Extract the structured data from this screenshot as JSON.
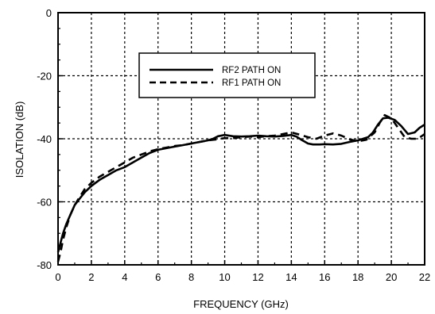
{
  "chart_data": {
    "type": "line",
    "title": "",
    "xlabel": "FREQUENCY (GHz)",
    "ylabel": "ISOLATION (dB)",
    "xlim": [
      0,
      22
    ],
    "ylim": [
      -80,
      0
    ],
    "xticks": [
      0,
      2,
      4,
      6,
      8,
      10,
      12,
      14,
      16,
      18,
      20,
      22
    ],
    "yticks": [
      0,
      -20,
      -40,
      -60,
      -80
    ],
    "grid": true,
    "legend_position": "top-center",
    "series": [
      {
        "name": "RF2 PATH ON",
        "style": "solid",
        "x": [
          0,
          0.15,
          0.3,
          0.5,
          0.75,
          1,
          1.3,
          1.6,
          2,
          2.5,
          3,
          3.5,
          4,
          4.5,
          5,
          5.5,
          6,
          6.5,
          7,
          7.5,
          8,
          8.5,
          9,
          9.3,
          9.6,
          10,
          10.5,
          11,
          11.5,
          12,
          12.5,
          13,
          13.5,
          14,
          14.3,
          14.6,
          15,
          15.3,
          15.7,
          16,
          16.5,
          17,
          17.5,
          18,
          18.3,
          18.6,
          18.9,
          19.2,
          19.5,
          19.8,
          20.2,
          20.6,
          21,
          21.4,
          21.7,
          22
        ],
        "values": [
          -76,
          -73,
          -70,
          -67,
          -64,
          -61,
          -59,
          -57,
          -55,
          -53,
          -51.5,
          -50,
          -49,
          -47.5,
          -46,
          -44.5,
          -43.5,
          -43,
          -42.5,
          -42,
          -41.5,
          -41,
          -40.5,
          -40,
          -39.2,
          -38.8,
          -39.2,
          -39.3,
          -39.2,
          -39,
          -39.2,
          -39.3,
          -39.1,
          -38.8,
          -39.3,
          -40.3,
          -41.5,
          -41.8,
          -41.8,
          -41.7,
          -41.8,
          -41.6,
          -41,
          -40.5,
          -40,
          -39.5,
          -38,
          -35.5,
          -33.5,
          -33.3,
          -34,
          -36,
          -38.5,
          -38,
          -36.5,
          -35.5
        ]
      },
      {
        "name": "RF1 PATH ON",
        "style": "dashed",
        "x": [
          0,
          0.15,
          0.3,
          0.5,
          0.75,
          1,
          1.3,
          1.6,
          2,
          2.5,
          3,
          3.5,
          4,
          4.5,
          5,
          5.5,
          6,
          6.5,
          7,
          7.5,
          8,
          8.5,
          9,
          9.5,
          10,
          10.5,
          11,
          11.5,
          12,
          12.5,
          13,
          13.5,
          14,
          14.5,
          15,
          15.5,
          16,
          16.5,
          17,
          17.5,
          18,
          18.5,
          19,
          19.3,
          19.6,
          20,
          20.4,
          20.8,
          21.2,
          21.6,
          22
        ],
        "values": [
          -79,
          -76,
          -72,
          -68,
          -64,
          -61,
          -58.5,
          -56,
          -54,
          -52,
          -50.5,
          -49,
          -47.5,
          -46,
          -45,
          -44,
          -43.3,
          -42.8,
          -42.3,
          -42,
          -41.5,
          -41,
          -40.5,
          -40.2,
          -39.8,
          -39.8,
          -39.5,
          -39.3,
          -39.5,
          -39.2,
          -39,
          -38.5,
          -38,
          -38.7,
          -39.5,
          -40,
          -39,
          -38.3,
          -39,
          -40.2,
          -40.8,
          -40.3,
          -38,
          -35,
          -32.5,
          -33.5,
          -36.5,
          -39.5,
          -40,
          -40,
          -38.5
        ]
      }
    ]
  }
}
